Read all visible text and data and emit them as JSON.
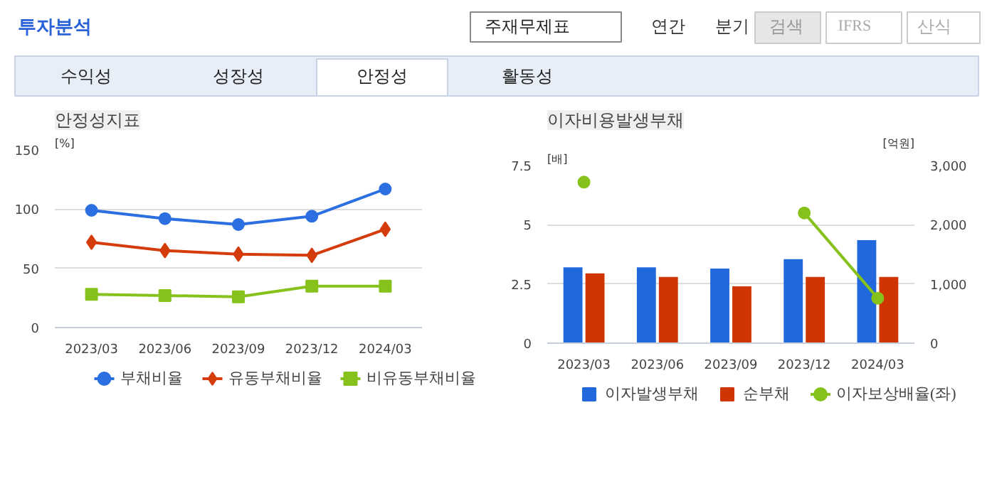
{
  "chart_data": [
    {
      "type": "other",
      "annotations": [
        "투자분석",
        "주재무제표",
        "연간",
        "분기",
        "검색",
        "IFRS",
        "산식",
        "수익성",
        "성장성",
        "안정성",
        "활동성"
      ]
    },
    {
      "type": "line",
      "title": "안정성지표",
      "ylabel": "[%]",
      "categories": [
        "2023/03",
        "2023/06",
        "2023/09",
        "2023/12",
        "2024/03"
      ],
      "ylim": [
        0,
        150
      ],
      "yticks": [
        0,
        50,
        100,
        150
      ],
      "grid": "y",
      "legend": "bottom",
      "series": [
        {
          "name": "부채비율",
          "color": "#2b6fe0",
          "marker": "circle",
          "values": [
            99,
            92,
            87,
            94,
            117
          ]
        },
        {
          "name": "유동부채비율",
          "color": "#d43c0c",
          "marker": "diamond",
          "values": [
            72,
            65,
            62,
            61,
            83
          ]
        },
        {
          "name": "비유동부채비율",
          "color": "#86c21b",
          "marker": "square",
          "values": [
            28,
            27,
            26,
            35,
            35
          ]
        }
      ]
    },
    {
      "type": "bar",
      "title": "이자비용발생부채",
      "ylabel": "[배]",
      "y2label": "[억원]",
      "categories": [
        "2023/03",
        "2023/06",
        "2023/09",
        "2023/12",
        "2024/03"
      ],
      "ylim": [
        0,
        7.5
      ],
      "yticks": [
        0,
        2.5,
        5,
        7.5
      ],
      "y2lim": [
        0,
        3000
      ],
      "y2ticks": [
        {
          "value": 0,
          "label": "0"
        },
        {
          "value": 1000,
          "label": "1,000"
        },
        {
          "value": 2000,
          "label": "2,000"
        },
        {
          "value": 3000,
          "label": "3,000"
        }
      ],
      "grid": "y",
      "legend": "bottom",
      "series": [
        {
          "name": "이자발생부채",
          "type": "bar",
          "axis": "y2",
          "color": "#2168dc",
          "values": [
            1280,
            1280,
            1260,
            1420,
            1740
          ]
        },
        {
          "name": "순부채",
          "type": "bar",
          "axis": "y2",
          "color": "#cf3500",
          "values": [
            1180,
            1120,
            960,
            1120,
            1120
          ]
        },
        {
          "name": "이자보상배율(좌)",
          "type": "line",
          "color": "#86c21b",
          "marker": "circle",
          "values": [
            6.8,
            null,
            null,
            5.5,
            1.9
          ]
        }
      ]
    }
  ]
}
